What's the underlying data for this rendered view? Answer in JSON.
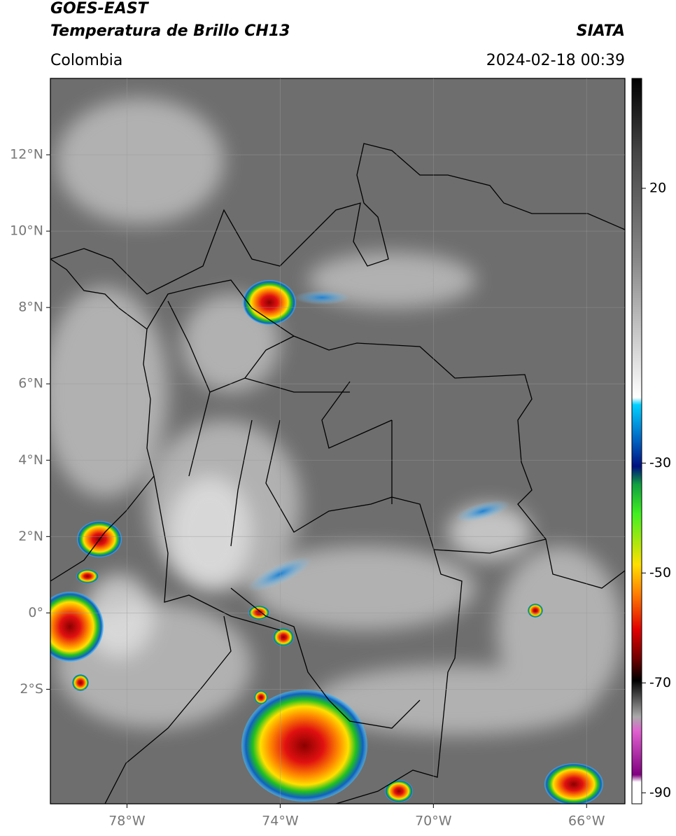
{
  "header": {
    "title": "GOES-EAST",
    "subtitle": "Temperatura de Brillo CH13",
    "source": "SIATA",
    "region": "Colombia",
    "datetime": "2024-02-18 00:39"
  },
  "chart_data": {
    "type": "map",
    "xlim": [
      -80,
      -65
    ],
    "ylim": [
      -5,
      14
    ],
    "xticks": [
      {
        "value": -78,
        "label": "78°W"
      },
      {
        "value": -74,
        "label": "74°W"
      },
      {
        "value": -70,
        "label": "70°W"
      },
      {
        "value": -66,
        "label": "66°W"
      }
    ],
    "yticks": [
      {
        "value": 12,
        "label": "12°N"
      },
      {
        "value": 10,
        "label": "10°N"
      },
      {
        "value": 8,
        "label": "8°N"
      },
      {
        "value": 6,
        "label": "6°N"
      },
      {
        "value": 4,
        "label": "4°N"
      },
      {
        "value": 2,
        "label": "2°N"
      },
      {
        "value": 0,
        "label": "0°"
      },
      {
        "value": -2,
        "label": "2°S"
      }
    ],
    "grid": true,
    "colorbar": {
      "lim": [
        -92,
        40
      ],
      "ticks": [
        20,
        -30,
        -50,
        -70,
        -90
      ]
    }
  }
}
